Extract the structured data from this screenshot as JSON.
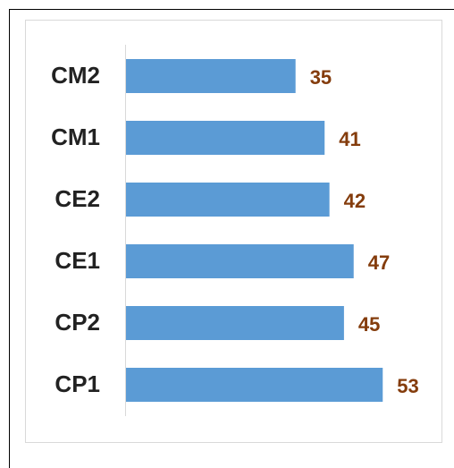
{
  "chart_data": {
    "type": "bar",
    "orientation": "horizontal",
    "categories": [
      "CM2",
      "CM1",
      "CE2",
      "CE1",
      "CP2",
      "CP1"
    ],
    "values": [
      35,
      41,
      42,
      47,
      45,
      53
    ],
    "color": "#5b9bd5",
    "label_color": "#843c0c"
  }
}
